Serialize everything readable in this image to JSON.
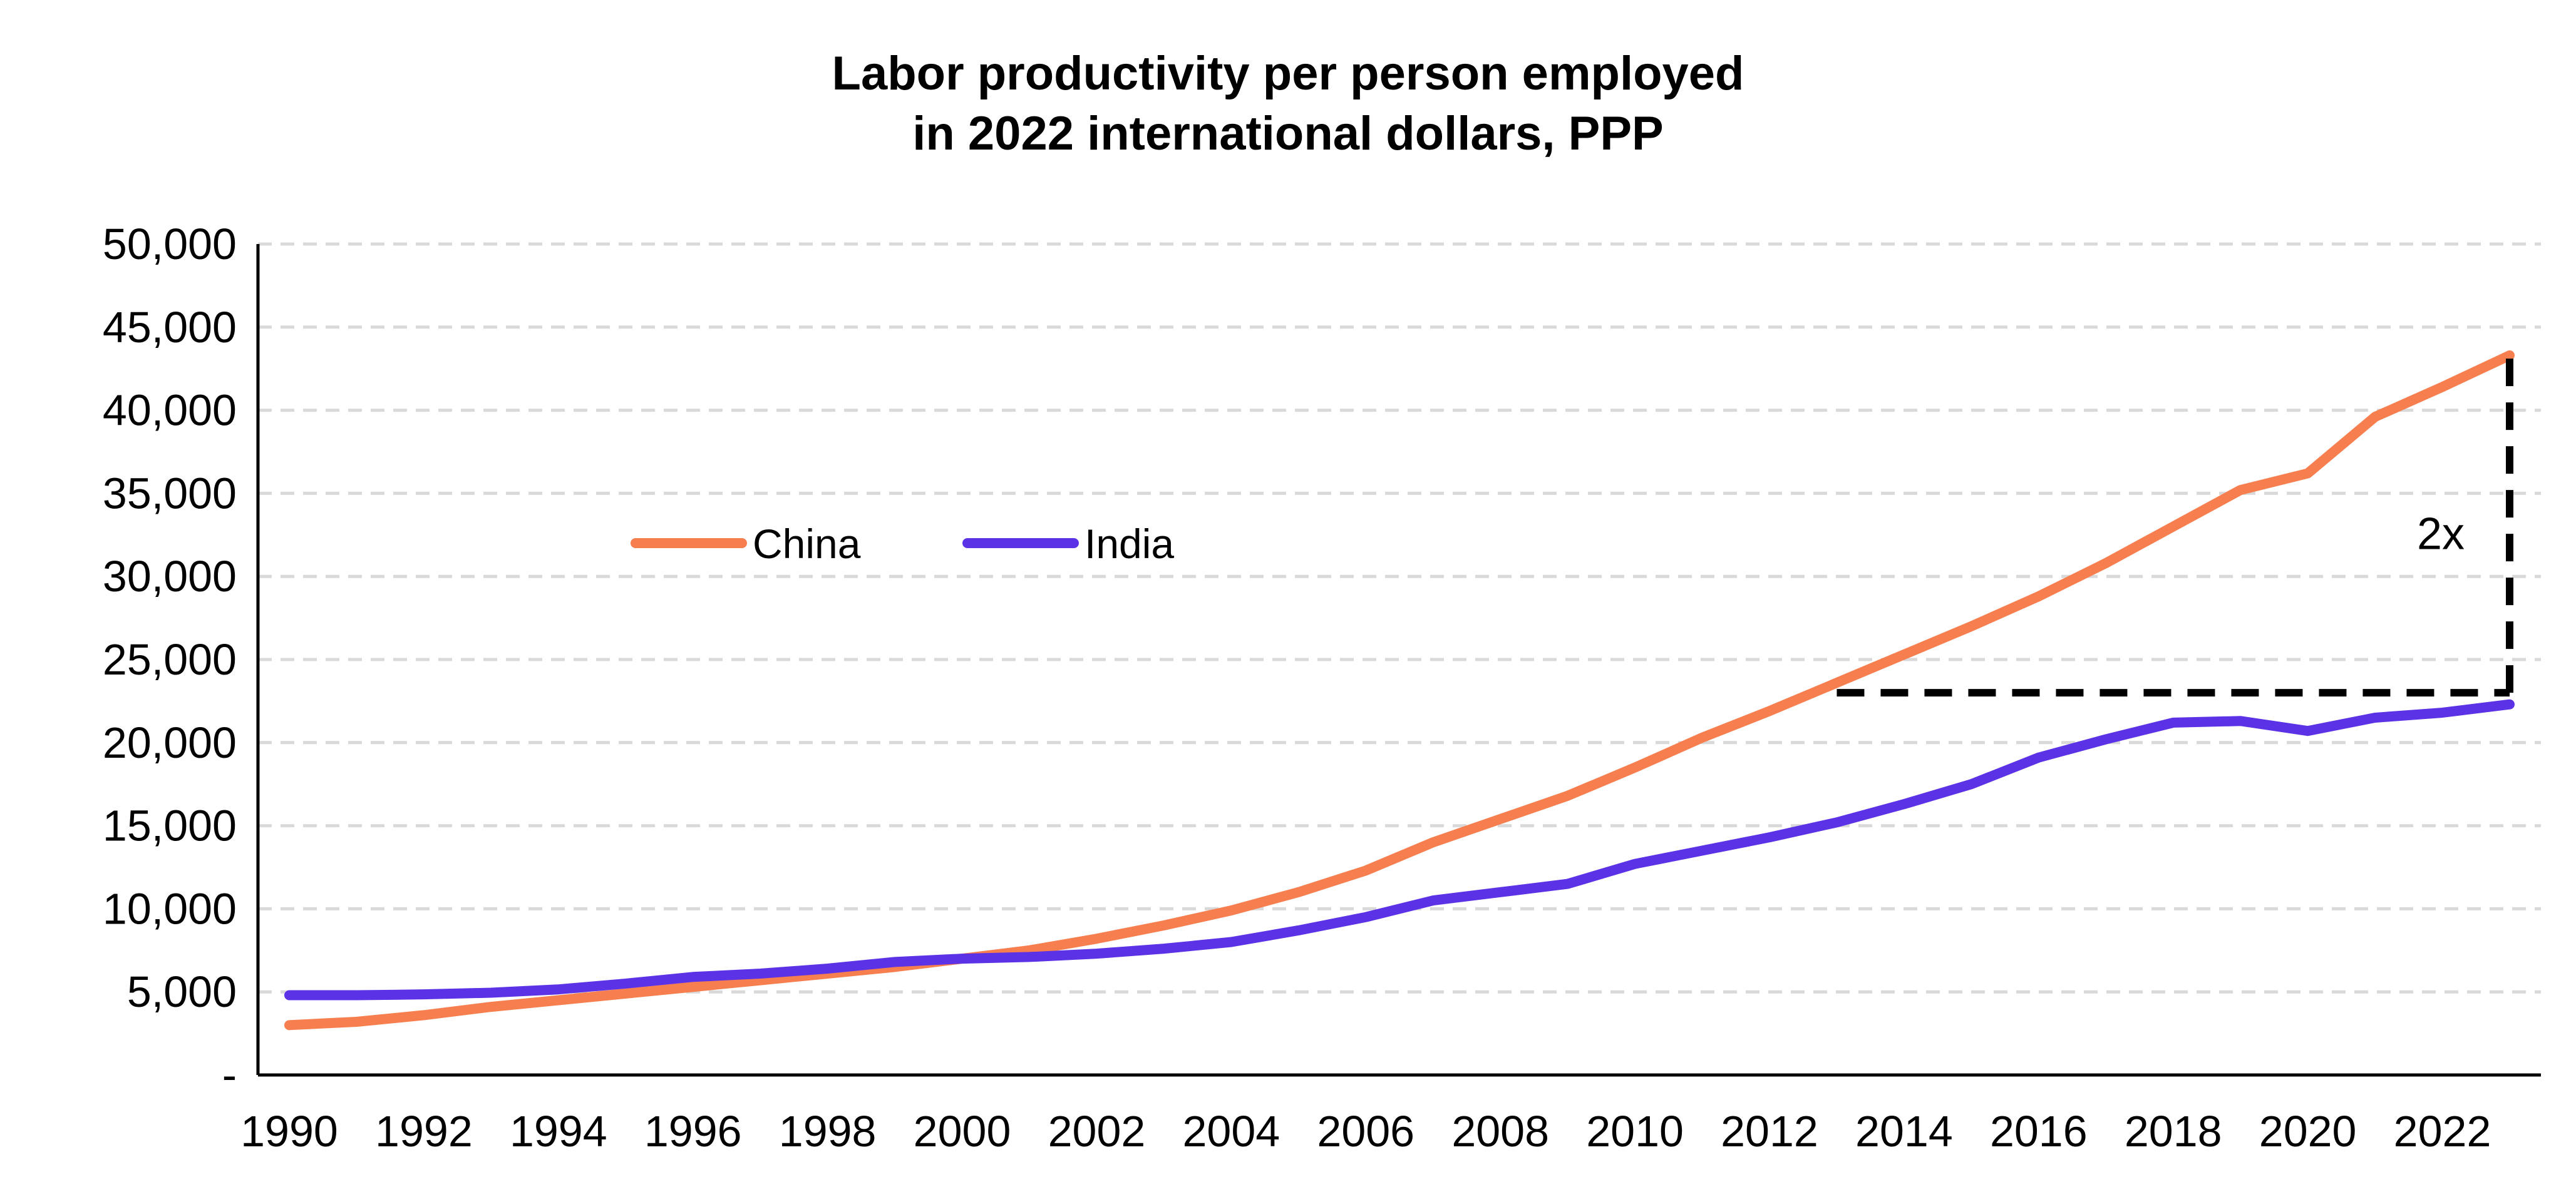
{
  "chart_data": {
    "type": "line",
    "title_lines": [
      "Labor productivity per person employed",
      "in 2022 international dollars, PPP"
    ],
    "xlabel": "",
    "ylabel": "",
    "x": [
      1990,
      1991,
      1992,
      1993,
      1994,
      1995,
      1996,
      1997,
      1998,
      1999,
      2000,
      2001,
      2002,
      2003,
      2004,
      2005,
      2006,
      2007,
      2008,
      2009,
      2010,
      2011,
      2012,
      2013,
      2014,
      2015,
      2016,
      2017,
      2018,
      2019,
      2020,
      2021,
      2022,
      2023
    ],
    "x_tick_labels": [
      "1990",
      "1992",
      "1994",
      "1996",
      "1998",
      "2000",
      "2002",
      "2004",
      "2006",
      "2008",
      "2010",
      "2012",
      "2014",
      "2016",
      "2018",
      "2020",
      "2022"
    ],
    "ylim": [
      0,
      50000
    ],
    "y_tick_labels": [
      "-",
      "5,000",
      "10,000",
      "15,000",
      "20,000",
      "25,000",
      "30,000",
      "35,000",
      "40,000",
      "45,000",
      "50,000"
    ],
    "grid": "horizontal dashed",
    "legend_position": "upper-left inside plot",
    "series": [
      {
        "name": "China",
        "color": "#F77F4F",
        "values": [
          3000,
          3200,
          3600,
          4100,
          4500,
          4900,
          5300,
          5700,
          6100,
          6500,
          7000,
          7500,
          8200,
          9000,
          9900,
          11000,
          12300,
          14000,
          15400,
          16800,
          18500,
          20300,
          21900,
          23600,
          25300,
          27000,
          28800,
          30800,
          33000,
          35200,
          36200,
          39600,
          41400,
          43300
        ]
      },
      {
        "name": "India",
        "color": "#5B32E6",
        "values": [
          4800,
          4800,
          4850,
          4950,
          5150,
          5500,
          5900,
          6100,
          6400,
          6800,
          7000,
          7100,
          7300,
          7600,
          8000,
          8700,
          9500,
          10500,
          11000,
          11500,
          12700,
          13500,
          14300,
          15200,
          16300,
          17500,
          19100,
          20200,
          21200,
          21300,
          20700,
          21500,
          21800,
          22300
        ]
      }
    ],
    "annotations": [
      {
        "text": "2x",
        "from_year": 2013,
        "to_year": 2023,
        "from_value": 23000,
        "to_value": 43300
      }
    ]
  }
}
